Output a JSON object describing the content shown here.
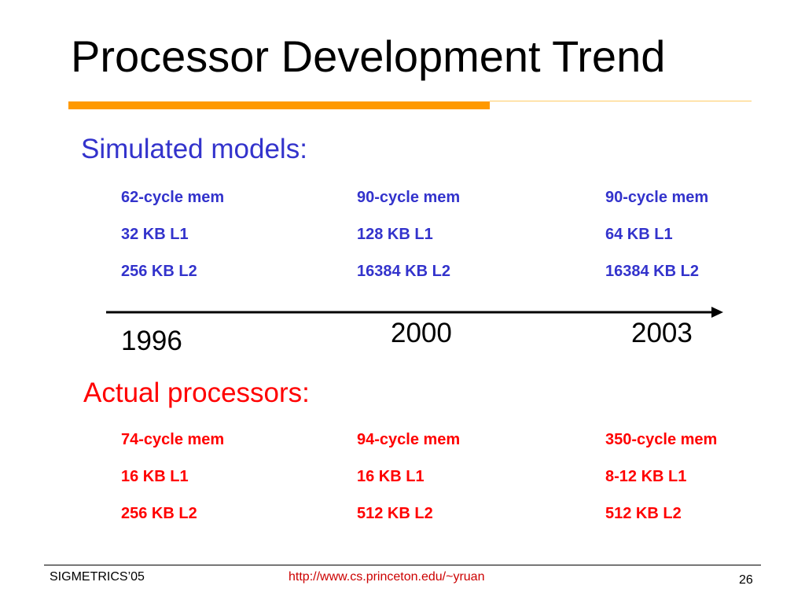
{
  "slide": {
    "title": "Processor Development Trend",
    "colors": {
      "accent": "#ff9900",
      "simulated": "#3333cc",
      "actual": "#ff0000"
    }
  },
  "simulated": {
    "heading": "Simulated models:",
    "columns": [
      {
        "mem": "62-cycle mem",
        "l1": "32 KB L1",
        "l2": "256 KB L2"
      },
      {
        "mem": "90-cycle mem",
        "l1": "128 KB L1",
        "l2": "16384 KB L2"
      },
      {
        "mem": "90-cycle mem",
        "l1": "64 KB L1",
        "l2": "16384 KB L2"
      }
    ]
  },
  "timeline": {
    "years": [
      "1996",
      "2000",
      "2003"
    ]
  },
  "actual": {
    "heading": "Actual processors:",
    "columns": [
      {
        "mem": "74-cycle mem",
        "l1": "16 KB L1",
        "l2": "256 KB L2"
      },
      {
        "mem": "94-cycle mem",
        "l1": "16 KB L1",
        "l2": "512 KB L2"
      },
      {
        "mem": "350-cycle mem",
        "l1": "8-12 KB L1",
        "l2": "512 KB L2"
      }
    ]
  },
  "footer": {
    "left": "SIGMETRICS’05",
    "center": "http://www.cs.princeton.edu/~yruan",
    "page_number": "26"
  }
}
